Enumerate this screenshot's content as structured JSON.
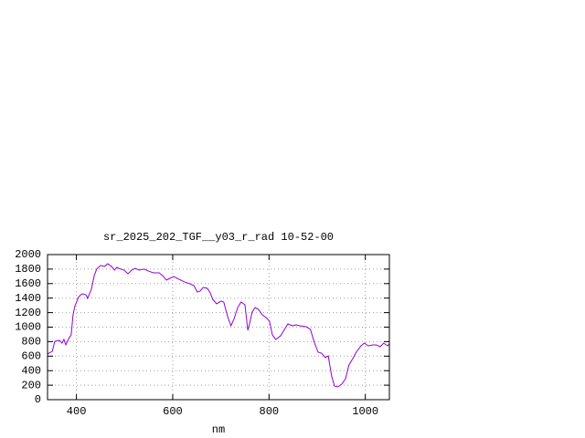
{
  "chart_data": {
    "type": "line",
    "title": "sr_2025_202_TGF__y03_r_rad 10-52-00",
    "xlabel": "nm",
    "xlim": [
      340,
      1050
    ],
    "xticks": [
      400,
      600,
      800,
      1000
    ],
    "ylim": [
      0,
      2000
    ],
    "yticks": [
      0,
      200,
      400,
      600,
      800,
      1000,
      1200,
      1400,
      1600,
      1800,
      2000
    ],
    "grid": true,
    "x": [
      340,
      350,
      355,
      365,
      370,
      374,
      378,
      385,
      389,
      393,
      397,
      405,
      412,
      420,
      423,
      431,
      437,
      442,
      450,
      458,
      465,
      473,
      479,
      484,
      492,
      499,
      507,
      515,
      522,
      530,
      541,
      549,
      560,
      572,
      579,
      587,
      594,
      602,
      613,
      625,
      636,
      644,
      651,
      657,
      663,
      672,
      678,
      683,
      691,
      700,
      706,
      714,
      721,
      727,
      735,
      742,
      750,
      756,
      759,
      765,
      771,
      778,
      786,
      794,
      801,
      807,
      814,
      824,
      831,
      839,
      849,
      856,
      864,
      877,
      886,
      894,
      902,
      909,
      917,
      923,
      930,
      936,
      943,
      951,
      959,
      966,
      974,
      981,
      991,
      998,
      1006,
      1016,
      1023,
      1031,
      1038,
      1046,
      1050
    ],
    "series": [
      {
        "name": "sr_2025_202_TGF__y03_r_rad 10-52-00",
        "color": "#9400d3",
        "values": [
          630,
          667,
          805,
          818,
          780,
          830,
          755,
          855,
          890,
          1170,
          1295,
          1420,
          1460,
          1445,
          1396,
          1520,
          1710,
          1800,
          1850,
          1836,
          1874,
          1836,
          1786,
          1824,
          1800,
          1786,
          1736,
          1786,
          1811,
          1786,
          1800,
          1774,
          1748,
          1748,
          1710,
          1648,
          1673,
          1698,
          1660,
          1622,
          1597,
          1572,
          1484,
          1497,
          1547,
          1535,
          1472,
          1384,
          1321,
          1358,
          1346,
          1145,
          1019,
          1107,
          1270,
          1346,
          1308,
          956,
          1031,
          1208,
          1270,
          1245,
          1170,
          1132,
          1082,
          893,
          830,
          880,
          956,
          1044,
          1019,
          1031,
          1019,
          1006,
          969,
          792,
          654,
          641,
          579,
          604,
          327,
          189,
          176,
          214,
          289,
          478,
          566,
          654,
          742,
          780,
          742,
          755,
          755,
          730,
          780,
          742,
          767
        ]
      }
    ]
  }
}
